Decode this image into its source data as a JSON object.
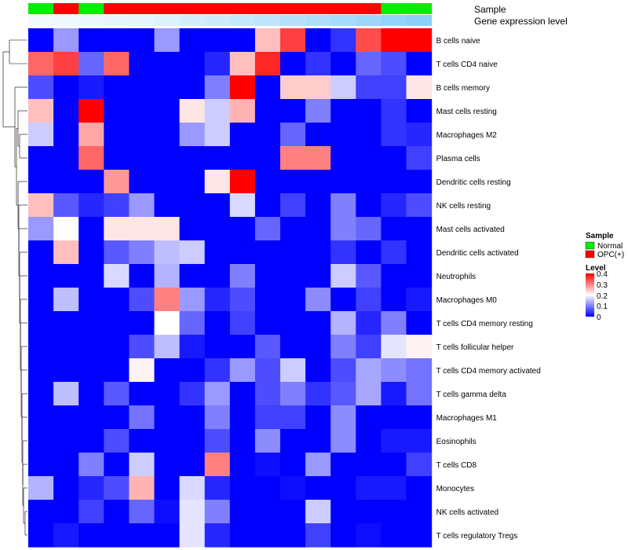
{
  "chart_data": {
    "type": "heatmap",
    "title": "",
    "annotation_tracks": [
      "Sample",
      "Gene expression level"
    ],
    "sample_groups": [
      "Normal",
      "OPC(+)",
      "Normal",
      "OPC(+)",
      "OPC(+)",
      "OPC(+)",
      "OPC(+)",
      "OPC(+)",
      "OPC(+)",
      "OPC(+)",
      "OPC(+)",
      "OPC(+)",
      "OPC(+)",
      "OPC(+)",
      "Normal",
      "Normal"
    ],
    "gene_expression_level": [
      0.02,
      0.05,
      0.08,
      0.1,
      0.15,
      0.2,
      0.28,
      0.35,
      0.42,
      0.5,
      0.57,
      0.64,
      0.72,
      0.8,
      0.88,
      0.95
    ],
    "rows": [
      "B cells naive",
      "T cells CD4 naive",
      "B cells memory",
      "Mast cells resting",
      "Macrophages M2",
      "Plasma cells",
      "Dendritic cells resting",
      "NK cells resting",
      "Mast cells activated",
      "Dendritic cells activated",
      "Neutrophils",
      "Macrophages M0",
      "T cells CD4 memory resting",
      "T cells follicular helper",
      "T cells CD4 memory activated",
      "T cells gamma delta",
      "Macrophages M1",
      "Eosinophils",
      "T cells CD8",
      "Monocytes",
      "NK cells activated",
      "T cells regulatory  Tregs"
    ],
    "values": [
      [
        0.0,
        0.12,
        0.0,
        0.0,
        0.0,
        0.12,
        0.0,
        0.0,
        0.0,
        0.25,
        0.35,
        0.0,
        0.04,
        0.34,
        0.4,
        0.4
      ],
      [
        0.32,
        0.35,
        0.08,
        0.32,
        0.0,
        0.0,
        0.0,
        0.03,
        0.25,
        0.37,
        0.0,
        0.04,
        0.0,
        0.08,
        0.06,
        0.0
      ],
      [
        0.06,
        0.0,
        0.02,
        0.0,
        0.0,
        0.0,
        0.0,
        0.1,
        0.4,
        0.0,
        0.24,
        0.24,
        0.16,
        0.05,
        0.05,
        0.22
      ],
      [
        0.25,
        0.0,
        0.4,
        0.0,
        0.0,
        0.0,
        0.22,
        0.16,
        0.26,
        0.0,
        0.0,
        0.1,
        0.0,
        0.0,
        0.04,
        0.0
      ],
      [
        0.16,
        0.0,
        0.27,
        0.0,
        0.0,
        0.0,
        0.12,
        0.16,
        0.0,
        0.0,
        0.08,
        0.0,
        0.0,
        0.0,
        0.04,
        0.03
      ],
      [
        0.0,
        0.0,
        0.32,
        0.0,
        0.0,
        0.0,
        0.0,
        0.0,
        0.0,
        0.0,
        0.3,
        0.3,
        0.0,
        0.0,
        0.0,
        0.05
      ],
      [
        0.0,
        0.0,
        0.0,
        0.28,
        0.0,
        0.0,
        0.0,
        0.22,
        0.4,
        0.0,
        0.0,
        0.0,
        0.0,
        0.0,
        0.0,
        0.0
      ],
      [
        0.25,
        0.07,
        0.03,
        0.05,
        0.12,
        0.0,
        0.0,
        0.0,
        0.17,
        0.0,
        0.05,
        0.0,
        0.1,
        0.0,
        0.03,
        0.06
      ],
      [
        0.12,
        0.2,
        0.0,
        0.22,
        0.22,
        0.22,
        0.0,
        0.0,
        0.0,
        0.08,
        0.0,
        0.0,
        0.1,
        0.08,
        0.0,
        0.0
      ],
      [
        0.0,
        0.25,
        0.0,
        0.07,
        0.1,
        0.15,
        0.16,
        0.0,
        0.0,
        0.0,
        0.0,
        0.0,
        0.04,
        0.0,
        0.04,
        0.0
      ],
      [
        0.0,
        0.0,
        0.0,
        0.17,
        0.0,
        0.14,
        0.0,
        0.0,
        0.1,
        0.0,
        0.0,
        0.0,
        0.16,
        0.07,
        0.0,
        0.0
      ],
      [
        0.0,
        0.15,
        0.0,
        0.0,
        0.06,
        0.3,
        0.12,
        0.03,
        0.06,
        0.0,
        0.0,
        0.11,
        0.0,
        0.05,
        0.0,
        0.02
      ],
      [
        0.0,
        0.0,
        0.0,
        0.0,
        0.0,
        0.2,
        0.08,
        0.0,
        0.05,
        0.0,
        0.0,
        0.0,
        0.14,
        0.03,
        0.1,
        0.0
      ],
      [
        0.0,
        0.0,
        0.0,
        0.0,
        0.06,
        0.15,
        0.02,
        0.0,
        0.0,
        0.07,
        0.0,
        0.0,
        0.1,
        0.05,
        0.18,
        0.21
      ],
      [
        0.0,
        0.0,
        0.0,
        0.0,
        0.21,
        0.0,
        0.0,
        0.04,
        0.12,
        0.06,
        0.16,
        0.0,
        0.06,
        0.13,
        0.11,
        0.09
      ],
      [
        0.0,
        0.15,
        0.0,
        0.07,
        0.0,
        0.0,
        0.04,
        0.12,
        0.0,
        0.06,
        0.1,
        0.04,
        0.07,
        0.13,
        0.02,
        0.09
      ],
      [
        0.0,
        0.0,
        0.0,
        0.0,
        0.09,
        0.0,
        0.0,
        0.1,
        0.0,
        0.05,
        0.05,
        0.0,
        0.11,
        0.0,
        0.0,
        0.0
      ],
      [
        0.0,
        0.0,
        0.0,
        0.06,
        0.0,
        0.0,
        0.0,
        0.06,
        0.0,
        0.11,
        0.0,
        0.0,
        0.11,
        0.0,
        0.02,
        0.02
      ],
      [
        0.0,
        0.0,
        0.1,
        0.0,
        0.16,
        0.0,
        0.0,
        0.3,
        0.0,
        0.01,
        0.0,
        0.12,
        0.0,
        0.0,
        0.0,
        0.05
      ],
      [
        0.14,
        0.0,
        0.03,
        0.06,
        0.26,
        0.0,
        0.17,
        0.03,
        0.0,
        0.0,
        0.01,
        0.0,
        0.0,
        0.02,
        0.02,
        0.0
      ],
      [
        0.0,
        0.0,
        0.05,
        0.0,
        0.08,
        0.01,
        0.18,
        0.1,
        0.0,
        0.0,
        0.0,
        0.16,
        0.0,
        0.0,
        0.0,
        0.0
      ],
      [
        0.0,
        0.02,
        0.0,
        0.0,
        0.0,
        0.0,
        0.18,
        0.03,
        0.0,
        0.0,
        0.0,
        0.05,
        0.0,
        0.01,
        0.0,
        0.0
      ]
    ],
    "legend": {
      "sample_title": "Sample",
      "sample_items": [
        {
          "label": "Normal",
          "color": "#00ee00"
        },
        {
          "label": "OPC(+)",
          "color": "#ff0000"
        }
      ],
      "level_title": "Level",
      "level_ticks": [
        "0.4",
        "0.3",
        "0.2",
        "0.1",
        "0"
      ],
      "vmin": 0,
      "vmax": 0.4
    },
    "colors": {
      "low": "#0000ff",
      "mid": "#ffffff",
      "high": "#ff0000",
      "expr_low": "#f4fbfd",
      "expr_high": "#87cefa"
    }
  }
}
